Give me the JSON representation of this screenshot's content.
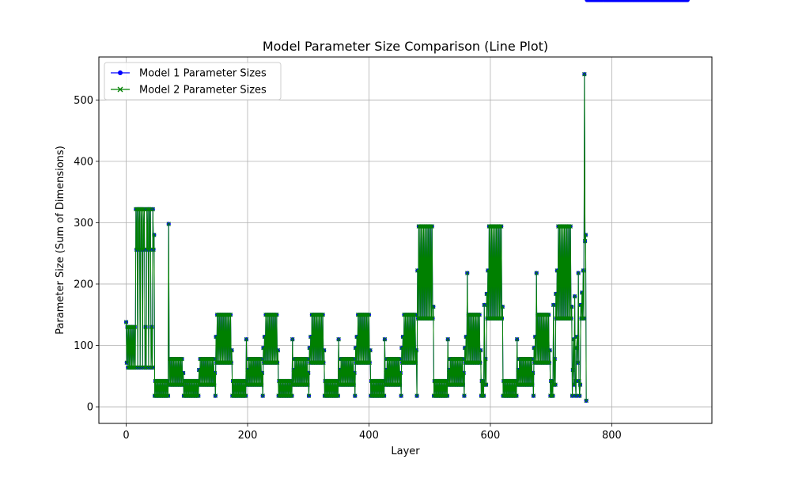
{
  "chart_data": {
    "type": "line",
    "title": "Model Parameter Size Comparison (Line Plot)",
    "xlabel": "Layer",
    "ylabel": "Parameter Size (Sum of Dimensions)",
    "xlim": [
      -45,
      965
    ],
    "ylim": [
      -27,
      570
    ],
    "xticks": [
      0,
      200,
      400,
      600,
      800
    ],
    "yticks": [
      0,
      100,
      200,
      300,
      400,
      500
    ],
    "grid": true,
    "legend_position": "upper-left",
    "series": [
      {
        "name": "Model 1 Parameter Sizes",
        "color": "#0000ff",
        "marker": "circle"
      },
      {
        "name": "Model 2 Parameter Sizes",
        "color": "#008000",
        "marker": "x"
      }
    ],
    "x": [
      0,
      1,
      2,
      3,
      4,
      5,
      6,
      7,
      8,
      9,
      10,
      11,
      12,
      13,
      14,
      15,
      16,
      17,
      18,
      19,
      20,
      21,
      22,
      23,
      24,
      25,
      26,
      27,
      28,
      29,
      30,
      31,
      32,
      33,
      34,
      35,
      36,
      37,
      38,
      39,
      40,
      41,
      42,
      43,
      44,
      45,
      46,
      47,
      48,
      49,
      50,
      51,
      52,
      53,
      54,
      55,
      56,
      57,
      58,
      59,
      60,
      61,
      62,
      63,
      64,
      65,
      66,
      67,
      68,
      69,
      70,
      71,
      72,
      73,
      74,
      75,
      76,
      77,
      78,
      79,
      80,
      81,
      82,
      83,
      84,
      85,
      86,
      87,
      88,
      89,
      90,
      91,
      92,
      93,
      94,
      95,
      96,
      97,
      98,
      99,
      100,
      101,
      102,
      103,
      104,
      105,
      106,
      107,
      108,
      109,
      110,
      111,
      112,
      113,
      114,
      115,
      116,
      117,
      118,
      119,
      120,
      121,
      122,
      123,
      124,
      125,
      126,
      127,
      128,
      129,
      130,
      131,
      132,
      133,
      134,
      135,
      136,
      137,
      138,
      139,
      140,
      141,
      142,
      143,
      144,
      145,
      146,
      147,
      148,
      149,
      150,
      151,
      152,
      153,
      154,
      155,
      156,
      157,
      158,
      159,
      160,
      161,
      162,
      163,
      164,
      165,
      166,
      167,
      168,
      169,
      170,
      171,
      172,
      173,
      174,
      175,
      176,
      177,
      178,
      179,
      180,
      181,
      182,
      183,
      184,
      185,
      186,
      187,
      188,
      189,
      190,
      191,
      192,
      193,
      194,
      195,
      196,
      197,
      198,
      199,
      200,
      201,
      202,
      203,
      204,
      205,
      206,
      207,
      208,
      209,
      210,
      211,
      212,
      213,
      214,
      215,
      216,
      217,
      218,
      219,
      220,
      221,
      222,
      223,
      224,
      225,
      226,
      227,
      228,
      229,
      230,
      231,
      232,
      233,
      234,
      235,
      236,
      237,
      238,
      239,
      240,
      241,
      242,
      243,
      244,
      245,
      246,
      247,
      248,
      249,
      250,
      251,
      252,
      253,
      254,
      255,
      256,
      257,
      258,
      259,
      260,
      261,
      262,
      263,
      264,
      265,
      266,
      267,
      268,
      269,
      270,
      271,
      272,
      273,
      274,
      275,
      276,
      277,
      278,
      279,
      280,
      281,
      282,
      283,
      284,
      285,
      286,
      287,
      288,
      289,
      290,
      291,
      292,
      293,
      294,
      295,
      296,
      297,
      298,
      299,
      300,
      301,
      302,
      303,
      304,
      305,
      306,
      307,
      308,
      309,
      310,
      311,
      312,
      313,
      314,
      315,
      316,
      317,
      318,
      319,
      320,
      321,
      322,
      323,
      324,
      325,
      326,
      327,
      328,
      329,
      330,
      331,
      332,
      333,
      334,
      335,
      336,
      337,
      338,
      339,
      340,
      341,
      342,
      343,
      344,
      345,
      346,
      347,
      348,
      349,
      350,
      351,
      352,
      353,
      354,
      355,
      356,
      357,
      358,
      359,
      360,
      361,
      362,
      363,
      364,
      365,
      366,
      367,
      368,
      369,
      370,
      371,
      372,
      373,
      374,
      375,
      376,
      377,
      378,
      379,
      380,
      381,
      382,
      383,
      384,
      385,
      386,
      387,
      388,
      389,
      390,
      391,
      392,
      393,
      394,
      395,
      396,
      397,
      398,
      399,
      400,
      401,
      402,
      403,
      404,
      405,
      406,
      407,
      408,
      409,
      410,
      411,
      412,
      413,
      414,
      415,
      416,
      417,
      418,
      419,
      420,
      421,
      422,
      423,
      424,
      425,
      426,
      427,
      428,
      429,
      430,
      431,
      432,
      433,
      434,
      435,
      436,
      437,
      438,
      439,
      440,
      441,
      442,
      443,
      444,
      445,
      446,
      447,
      448,
      449,
      450,
      451,
      452,
      453,
      454,
      455,
      456,
      457,
      458,
      459,
      460,
      461,
      462,
      463,
      464,
      465,
      466,
      467,
      468,
      469,
      470,
      471,
      472,
      473,
      474,
      475,
      476,
      477,
      478,
      479,
      480,
      481,
      482,
      483,
      484,
      485,
      486,
      487,
      488,
      489,
      490,
      491,
      492,
      493,
      494,
      495,
      496,
      497,
      498,
      499,
      500,
      501,
      502,
      503,
      504,
      505,
      506,
      507,
      508,
      509,
      510,
      511,
      512,
      513,
      514,
      515,
      516,
      517,
      518,
      519,
      520,
      521,
      522,
      523,
      524,
      525,
      526,
      527,
      528,
      529,
      530,
      531,
      532,
      533,
      534,
      535,
      536,
      537,
      538,
      539,
      540,
      541,
      542,
      543,
      544,
      545,
      546,
      547,
      548,
      549,
      550,
      551,
      552,
      553,
      554,
      555,
      556,
      557,
      558,
      559,
      560,
      561,
      562,
      563,
      564,
      565,
      566,
      567,
      568,
      569,
      570,
      571,
      572,
      573,
      574,
      575,
      576,
      577,
      578,
      579,
      580,
      581,
      582,
      583,
      584,
      585,
      586,
      587,
      588,
      589,
      590,
      591,
      592,
      593,
      594,
      595,
      596,
      597,
      598,
      599,
      600,
      601,
      602,
      603,
      604,
      605,
      606,
      607,
      608,
      609,
      610,
      611,
      612,
      613,
      614,
      615,
      616,
      617,
      618,
      619,
      620,
      621,
      622,
      623,
      624,
      625,
      626,
      627,
      628,
      629,
      630,
      631,
      632,
      633,
      634,
      635,
      636,
      637,
      638,
      639,
      640,
      641,
      642,
      643,
      644,
      645,
      646,
      647,
      648,
      649,
      650,
      651,
      652,
      653,
      654,
      655,
      656,
      657,
      658,
      659,
      660,
      661,
      662,
      663,
      664,
      665,
      666,
      667,
      668,
      669,
      670,
      671,
      672,
      673,
      674,
      675,
      676,
      677,
      678,
      679,
      680,
      681,
      682,
      683,
      684,
      685,
      686,
      687,
      688,
      689,
      690,
      691,
      692,
      693,
      694,
      695,
      696,
      697,
      698,
      699,
      700,
      701,
      702,
      703,
      704,
      705,
      706,
      707,
      708,
      709,
      710,
      711,
      712,
      713,
      714,
      715,
      716,
      717,
      718,
      719,
      720,
      721,
      722,
      723,
      724,
      725,
      726,
      727,
      728,
      729,
      730,
      731,
      732,
      733,
      734,
      735,
      736,
      737,
      738,
      739,
      740,
      741,
      742,
      743,
      744,
      745,
      746,
      747,
      748,
      749,
      750,
      751,
      752,
      753,
      754,
      755,
      756,
      757,
      758,
      759,
      760,
      761,
      762,
      763,
      764,
      765,
      766,
      767,
      768,
      769,
      770,
      771,
      772,
      773,
      774,
      775,
      776,
      777,
      778,
      779,
      780,
      781,
      782,
      783,
      784,
      785,
      786,
      787,
      788,
      789,
      790,
      791,
      792,
      793,
      794,
      795,
      796,
      797,
      798,
      799,
      800,
      801,
      802,
      803,
      804,
      805,
      806,
      807,
      808,
      809,
      810,
      811,
      812,
      813,
      814,
      815,
      816,
      817,
      818,
      819,
      820,
      821,
      822,
      823,
      824,
      825,
      826,
      827,
      828,
      829,
      830,
      831,
      832,
      833,
      834,
      835,
      836,
      837,
      838,
      839,
      840,
      841,
      842,
      843,
      844,
      845,
      846,
      847,
      848,
      849,
      850,
      851,
      852,
      853,
      854,
      855,
      856,
      857,
      858,
      859,
      860,
      861,
      862,
      863,
      864,
      865,
      866,
      867,
      868,
      869,
      870,
      871,
      872,
      873,
      874,
      875,
      876,
      877,
      878,
      879,
      880,
      881,
      882,
      883,
      884,
      885,
      886,
      887,
      888,
      889,
      890,
      891,
      892,
      893,
      894,
      895,
      896,
      897,
      898,
      899,
      900,
      901,
      902,
      903,
      904,
      905,
      906,
      907,
      908,
      909,
      910,
      911,
      912,
      913,
      914,
      915,
      916,
      917,
      918,
      919,
      920,
      921,
      922,
      923,
      924,
      925
    ],
    "model1_values": [
      138,
      72,
      130,
      64,
      130,
      64,
      130,
      64,
      130,
      64,
      130,
      64,
      130,
      64,
      130,
      64,
      322,
      256,
      322,
      64,
      322,
      256,
      322,
      64,
      322,
      256,
      322,
      64,
      322,
      256,
      322,
      64,
      130,
      64,
      322,
      256,
      322,
      64,
      322,
      256,
      322,
      64,
      130,
      64,
      322,
      256,
      280,
      18,
      42,
      18,
      42,
      18,
      42,
      18,
      42,
      18,
      42,
      18,
      42,
      18,
      42,
      18,
      42,
      18,
      42,
      18,
      42,
      18,
      42,
      18,
      298,
      36,
      78,
      36,
      78,
      36,
      78,
      36,
      78,
      36,
      78,
      36,
      78,
      36,
      78,
      36,
      78,
      36,
      78,
      36,
      78,
      36,
      78,
      36,
      55,
      18,
      42,
      18,
      42,
      18,
      42,
      18,
      42,
      18,
      42,
      18,
      42,
      18,
      42,
      18,
      42,
      18,
      42,
      18,
      42,
      18,
      42,
      18,
      42,
      18,
      60,
      36,
      78,
      36,
      78,
      36,
      78,
      36,
      78,
      36,
      78,
      36,
      78,
      36,
      78,
      36,
      78,
      36,
      78,
      36,
      78,
      36,
      78,
      36,
      78,
      36,
      55,
      18,
      114,
      72,
      150,
      72,
      150,
      72,
      150,
      72,
      150,
      72,
      150,
      72,
      150,
      72,
      150,
      72,
      150,
      72,
      150,
      72,
      150,
      72,
      150,
      72,
      150,
      72,
      92,
      18,
      42,
      18,
      42,
      18,
      42,
      18,
      42,
      18,
      42,
      18,
      42,
      18,
      42,
      18,
      42,
      18,
      42,
      18,
      42,
      18,
      42,
      18,
      110,
      36,
      60,
      36,
      78,
      36,
      78,
      36,
      78,
      36,
      78,
      36,
      78,
      36,
      78,
      36,
      78,
      36,
      78,
      36,
      78,
      36,
      78,
      36,
      78,
      36,
      55,
      18,
      96,
      72,
      114,
      72,
      150,
      72,
      150,
      72,
      150,
      72,
      150,
      72,
      150,
      72,
      150,
      72,
      150,
      72,
      150,
      72,
      150,
      72,
      150,
      72,
      92,
      18,
      42,
      18,
      42,
      18,
      42,
      18,
      42,
      18,
      42,
      18,
      42,
      18,
      42,
      18,
      42,
      18,
      42,
      18,
      42,
      18,
      42,
      18,
      110,
      36,
      60,
      36,
      78,
      36,
      78,
      36,
      78,
      36,
      78,
      36,
      78,
      36,
      78,
      36,
      78,
      36,
      78,
      36,
      78,
      36,
      78,
      36,
      78,
      36,
      55,
      18,
      96,
      72,
      114,
      72,
      150,
      72,
      150,
      72,
      150,
      72,
      150,
      72,
      150,
      72,
      150,
      72,
      150,
      72,
      150,
      72,
      150,
      72,
      150,
      72,
      92,
      18,
      42,
      18,
      42,
      18,
      42,
      18,
      42,
      18,
      42,
      18,
      42,
      18,
      42,
      18,
      42,
      18,
      42,
      18,
      42,
      18,
      42,
      18,
      110,
      36,
      60,
      36,
      78,
      36,
      78,
      36,
      78,
      36,
      78,
      36,
      78,
      36,
      78,
      36,
      78,
      36,
      78,
      36,
      78,
      36,
      78,
      36,
      78,
      36,
      55,
      18,
      96,
      72,
      114,
      72,
      150,
      72,
      150,
      72,
      150,
      72,
      150,
      72,
      150,
      72,
      150,
      72,
      150,
      72,
      150,
      72,
      150,
      72,
      150,
      72,
      92,
      18,
      42,
      18,
      42,
      18,
      42,
      18,
      42,
      18,
      42,
      18,
      42,
      18,
      42,
      18,
      42,
      18,
      42,
      18,
      42,
      18,
      42,
      18,
      110,
      36,
      60,
      36,
      78,
      36,
      78,
      36,
      78,
      36,
      78,
      36,
      78,
      36,
      78,
      36,
      78,
      36,
      78,
      36,
      78,
      36,
      78,
      36,
      78,
      36,
      55,
      18,
      96,
      72,
      114,
      72,
      150,
      72,
      150,
      72,
      150,
      72,
      150,
      72,
      150,
      72,
      150,
      72,
      150,
      72,
      150,
      72,
      150,
      72,
      150,
      72,
      92,
      18,
      222,
      144,
      294,
      144,
      294,
      144,
      294,
      144,
      294,
      144,
      294,
      144,
      294,
      144,
      294,
      144,
      294,
      144,
      294,
      144,
      294,
      144,
      294,
      144,
      294,
      144,
      163,
      18,
      42,
      18,
      42,
      18,
      42,
      18,
      42,
      18,
      42,
      18,
      42,
      18,
      42,
      18,
      42,
      18,
      42,
      18,
      42,
      18,
      42,
      18,
      110,
      36,
      60,
      36,
      78,
      36,
      78,
      36,
      78,
      36,
      78,
      36,
      78,
      36,
      78,
      36,
      78,
      36,
      78,
      36,
      78,
      36,
      78,
      36,
      78,
      36,
      55,
      18,
      96,
      72,
      114,
      72,
      218,
      72,
      150,
      72,
      150,
      72,
      150,
      72,
      150,
      72,
      150,
      72,
      150,
      72,
      150,
      72,
      150,
      72,
      150,
      72,
      150,
      72,
      92,
      18,
      42,
      18,
      42,
      18,
      166,
      36,
      78,
      36,
      184,
      144,
      222,
      144,
      294,
      144,
      294,
      144,
      294,
      144,
      294,
      144,
      294,
      144,
      294,
      144,
      294,
      144,
      294,
      144,
      294,
      144,
      294,
      144,
      294,
      144,
      163,
      18,
      42,
      18,
      42,
      18,
      42,
      18,
      42,
      18,
      42,
      18,
      42,
      18,
      42,
      18,
      42,
      18,
      42,
      18,
      42,
      18,
      42,
      18,
      110,
      36,
      60,
      36,
      78,
      36,
      78,
      36,
      78,
      36,
      78,
      36,
      78,
      36,
      78,
      36,
      78,
      36,
      78,
      36,
      78,
      36,
      78,
      36,
      78,
      36,
      55,
      18,
      96,
      72,
      114,
      72,
      218,
      72,
      150,
      72,
      150,
      72,
      150,
      72,
      150,
      72,
      150,
      72,
      150,
      72,
      150,
      72,
      150,
      72,
      150,
      72,
      150,
      72,
      92,
      18,
      42,
      18,
      42,
      18,
      166,
      36,
      78,
      36,
      184,
      144,
      222,
      144,
      294,
      144,
      294,
      144,
      294,
      144,
      294,
      144,
      294,
      144,
      294,
      144,
      294,
      144,
      294,
      144,
      294,
      144,
      294,
      144,
      294,
      144,
      163,
      18,
      60,
      110,
      36,
      180,
      42,
      18,
      96,
      114,
      72,
      218,
      42,
      18,
      36,
      166,
      144,
      186,
      144,
      222,
      144,
      542,
      270,
      280,
      10
    ]
  }
}
